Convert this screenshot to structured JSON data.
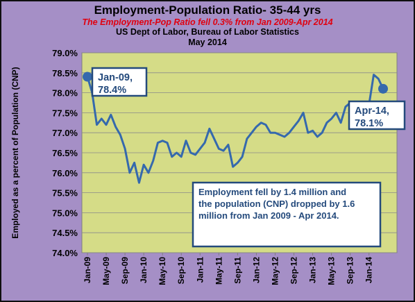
{
  "chart_data": {
    "type": "line",
    "title": "Employment-Population Ratio- 35-44 yrs",
    "subtitle": "The Employment-Pop Ratio fell 0.3% from Jan 2009-Apr 2014",
    "source": "US Dept of Labor, Bureau of Labor Statistics",
    "date": "May 2014",
    "ylabel": "Employed as a percent of Population (CNP)",
    "xlabel": "",
    "ylim": [
      74.0,
      79.0
    ],
    "y_ticks": [
      "74.0%",
      "74.5%",
      "75.0%",
      "75.5%",
      "76.0%",
      "76.5%",
      "77.0%",
      "77.5%",
      "78.0%",
      "78.5%",
      "79.0%"
    ],
    "x_tick_labels": [
      "Jan-09",
      "May-09",
      "Sep-09",
      "Jan-10",
      "May-10",
      "Sep-10",
      "Jan-11",
      "May-11",
      "Sep-11",
      "Jan-12",
      "May-12",
      "Sep-12",
      "Jan-13",
      "May-13",
      "Sep-13",
      "Jan-14"
    ],
    "grid": true,
    "series": [
      {
        "x": [
          "Jan-09",
          "Feb-09",
          "Mar-09",
          "Apr-09",
          "May-09",
          "Jun-09",
          "Jul-09",
          "Aug-09",
          "Sep-09",
          "Oct-09",
          "Nov-09",
          "Dec-09",
          "Jan-10",
          "Feb-10",
          "Mar-10",
          "Apr-10",
          "May-10",
          "Jun-10",
          "Jul-10",
          "Aug-10",
          "Sep-10",
          "Oct-10",
          "Nov-10",
          "Dec-10",
          "Jan-11",
          "Feb-11",
          "Mar-11",
          "Apr-11",
          "May-11",
          "Jun-11",
          "Jul-11",
          "Aug-11",
          "Sep-11",
          "Oct-11",
          "Nov-11",
          "Dec-11",
          "Jan-12",
          "Feb-12",
          "Mar-12",
          "Apr-12",
          "May-12",
          "Jun-12",
          "Jul-12",
          "Aug-12",
          "Sep-12",
          "Oct-12",
          "Nov-12",
          "Dec-12",
          "Jan-13",
          "Feb-13",
          "Mar-13",
          "Apr-13",
          "May-13",
          "Jun-13",
          "Jul-13",
          "Aug-13",
          "Sep-13",
          "Oct-13",
          "Nov-13",
          "Dec-13",
          "Jan-14",
          "Feb-14",
          "Mar-14",
          "Apr-14"
        ],
        "values": [
          78.4,
          78.0,
          77.2,
          77.35,
          77.2,
          77.45,
          77.15,
          76.95,
          76.6,
          76.0,
          76.25,
          75.75,
          76.2,
          76.0,
          76.3,
          76.75,
          76.8,
          76.75,
          76.4,
          76.5,
          76.4,
          76.8,
          76.5,
          76.45,
          76.6,
          76.75,
          77.1,
          76.85,
          76.6,
          76.55,
          76.7,
          76.15,
          76.25,
          76.4,
          76.85,
          77.0,
          77.15,
          77.25,
          77.2,
          77.0,
          77.0,
          76.95,
          76.9,
          77.0,
          77.15,
          77.3,
          77.5,
          77.0,
          77.05,
          76.9,
          77.0,
          77.25,
          77.35,
          77.5,
          77.25,
          77.65,
          77.75,
          77.7,
          77.2,
          77.5,
          77.7,
          78.45,
          78.35,
          78.1
        ],
        "color": "#3569ad"
      }
    ],
    "start_annotation": "Jan-09,\n78.4%",
    "end_annotation": "Apr-14,\n78.1%",
    "note": "Employment fell by  1.4 million and the population (CNP) dropped by 1.6 million from Jan 2009 - Apr 2014.",
    "colors": {
      "plot_bg": "#d5dc87",
      "frame_bg": "#a58fc6",
      "line": "#3569ad",
      "subtitle": "#e0000f",
      "box_border": "#244a7c"
    }
  }
}
